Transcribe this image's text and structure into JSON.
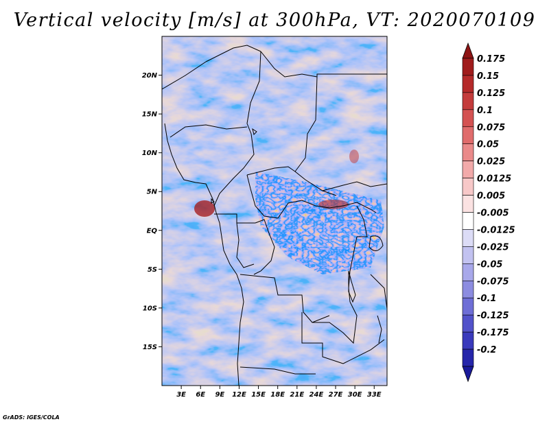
{
  "title": "Vertical velocity [m/s] at 300hPa, VT: 2020070109",
  "credit": "GrADS: IGES/COLA",
  "map": {
    "variable": "Vertical velocity",
    "units": "m/s",
    "level": "300hPa",
    "valid_time": "2020070109",
    "lon_range": [
      0,
      35
    ],
    "lat_range": [
      -20,
      25
    ],
    "lat_ticks": [
      {
        "value": 20,
        "label": "20N"
      },
      {
        "value": 15,
        "label": "15N"
      },
      {
        "value": 10,
        "label": "10N"
      },
      {
        "value": 5,
        "label": "5N"
      },
      {
        "value": 0,
        "label": "EQ"
      },
      {
        "value": -5,
        "label": "5S"
      },
      {
        "value": -10,
        "label": "10S"
      },
      {
        "value": -15,
        "label": "15S"
      }
    ],
    "lon_ticks": [
      {
        "value": 3,
        "label": "3E"
      },
      {
        "value": 6,
        "label": "6E"
      },
      {
        "value": 9,
        "label": "9E"
      },
      {
        "value": 12,
        "label": "12E"
      },
      {
        "value": 15,
        "label": "15E"
      },
      {
        "value": 18,
        "label": "18E"
      },
      {
        "value": 21,
        "label": "21E"
      },
      {
        "value": 24,
        "label": "24E"
      },
      {
        "value": 27,
        "label": "27E"
      },
      {
        "value": 30,
        "label": "30E"
      },
      {
        "value": 33,
        "label": "33E"
      }
    ]
  },
  "colorbar": {
    "levels": [
      {
        "label": "0.175",
        "color": "#a01c1c"
      },
      {
        "label": "0.15",
        "color": "#b52a2a"
      },
      {
        "label": "0.125",
        "color": "#c43c3c"
      },
      {
        "label": "0.1",
        "color": "#d45252"
      },
      {
        "label": "0.075",
        "color": "#e06c6c"
      },
      {
        "label": "0.05",
        "color": "#ea8a8a"
      },
      {
        "label": "0.025",
        "color": "#f2aaaa"
      },
      {
        "label": "0.0125",
        "color": "#f7c8c8"
      },
      {
        "label": "0.005",
        "color": "#fbe2e2"
      },
      {
        "label": "-0.005",
        "color": "#ffffff"
      },
      {
        "label": "-0.0125",
        "color": "#dcdcf6"
      },
      {
        "label": "-0.025",
        "color": "#c2c2f0"
      },
      {
        "label": "-0.05",
        "color": "#a8a8ea"
      },
      {
        "label": "-0.075",
        "color": "#8c8ce0"
      },
      {
        "label": "-0.1",
        "color": "#6e6ed6"
      },
      {
        "label": "-0.125",
        "color": "#5252ca"
      },
      {
        "label": "-0.175",
        "color": "#3a3abc"
      },
      {
        "label": "-0.2",
        "color": "#2626aa"
      }
    ],
    "top_triangle_color": "#8e1414",
    "bottom_triangle_color": "#1a1a9a"
  },
  "colors": {
    "positive_strong": "#c23a3a",
    "positive_weak": "#f2b4b4",
    "neutral": "#ffffff",
    "negative_weak": "#c8c8f2",
    "negative_strong": "#7070d8",
    "boundary": "#000000"
  }
}
